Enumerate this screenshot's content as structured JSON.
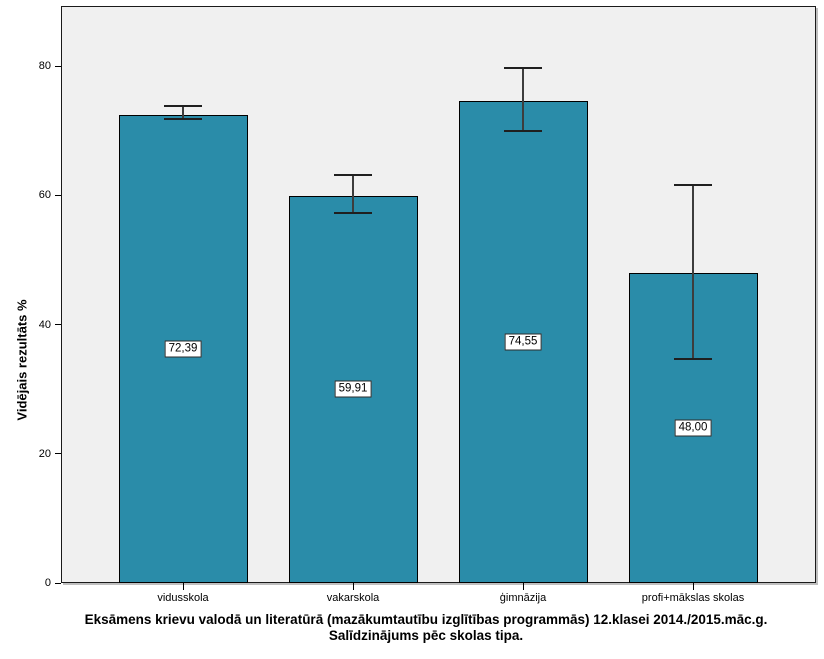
{
  "chart_data": {
    "type": "bar",
    "title": "Eksāmens krievu valodā un literatūrā (mazākumtautību izglītības programmās) 12.klasei 2014./2015.māc.g.",
    "subtitle": "Salīdzinājums pēc skolas tipa.",
    "ylabel": "Vidējais rezultāts %",
    "xlabel": "",
    "categories": [
      "vidusskola",
      "vakarskola",
      "ģimnāzija",
      "profi+mākslas skolas"
    ],
    "values": [
      72.39,
      59.91,
      74.55,
      48.0
    ],
    "value_labels": [
      "72,39",
      "59,91",
      "74,55",
      "48,00"
    ],
    "error_low": [
      71.8,
      57.3,
      69.9,
      34.7
    ],
    "error_high": [
      73.8,
      63.1,
      79.7,
      61.6
    ],
    "yticks": [
      0,
      20,
      40,
      60,
      80
    ],
    "ylim": [
      0,
      89.3
    ],
    "grid": false,
    "legend_position": "none",
    "colors": {
      "bar_fill": "#2A8CA9",
      "bar_border": "#000000",
      "plot_background": "#F0F0F0",
      "frame_border": "#1a1a1a",
      "error_bar_line": "#3d3d3d",
      "error_bar_cap": "#1f1f1f",
      "label_box_background": "#ffffff",
      "label_box_border": "#2b2b2b"
    }
  }
}
